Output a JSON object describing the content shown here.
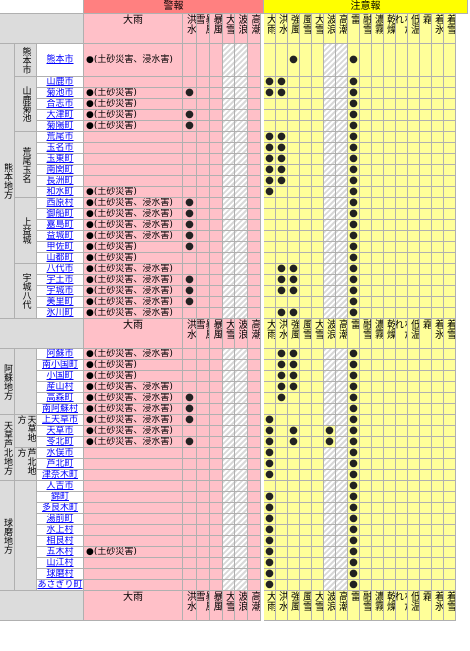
{
  "header": {
    "warning_group": "警報",
    "advisory_group": "注意報",
    "warning_cols": [
      "大雨",
      "洪水",
      "暴風雪",
      "暴風",
      "大雪",
      "波浪",
      "高潮"
    ],
    "advisory_cols": [
      "大雨",
      "洪水",
      "強風",
      "風雪",
      "大雪",
      "波浪",
      "高潮",
      "雷",
      "融雪",
      "濃霧",
      "乾燥",
      "なだれ",
      "低温",
      "霜",
      "着氷",
      "着雪"
    ]
  },
  "dot_glyph": "●",
  "regions": [
    {
      "name": "熊本地方",
      "subs": [
        {
          "name": "熊本市",
          "munis": [
            {
              "name": "熊本市",
              "note": "●(土砂災害、浸水害)",
              "w": [],
              "a": [
                2,
                7
              ]
            }
          ]
        },
        {
          "name": "山鹿菊池",
          "munis": [
            {
              "name": "山鹿市",
              "note": "",
              "w": [],
              "a": [
                0,
                1,
                7
              ]
            },
            {
              "name": "菊池市",
              "note": "●(土砂災害)",
              "w": [
                1
              ],
              "a": [
                0,
                1,
                7
              ]
            },
            {
              "name": "合志市",
              "note": "●(土砂災害)",
              "w": [],
              "a": [
                7
              ]
            },
            {
              "name": "大津町",
              "note": "●(土砂災害)",
              "w": [
                1
              ],
              "a": [
                7
              ]
            },
            {
              "name": "菊陽町",
              "note": "●(土砂災害)",
              "w": [
                1
              ],
              "a": [
                7
              ]
            }
          ]
        },
        {
          "name": "荒尾玉名",
          "munis": [
            {
              "name": "荒尾市",
              "note": "",
              "w": [],
              "a": [
                0,
                1,
                7
              ]
            },
            {
              "name": "玉名市",
              "note": "",
              "w": [],
              "a": [
                0,
                1,
                7
              ]
            },
            {
              "name": "玉東町",
              "note": "",
              "w": [],
              "a": [
                0,
                1,
                7
              ]
            },
            {
              "name": "南関町",
              "note": "",
              "w": [],
              "a": [
                0,
                1,
                7
              ]
            },
            {
              "name": "長洲町",
              "note": "",
              "w": [],
              "a": [
                0,
                1,
                7
              ]
            },
            {
              "name": "和水町",
              "note": "●(土砂災害)",
              "w": [],
              "a": [
                0,
                7
              ]
            }
          ]
        },
        {
          "name": "上益城",
          "munis": [
            {
              "name": "西原村",
              "note": "●(土砂災害、浸水害)",
              "w": [
                1
              ],
              "a": [
                7
              ]
            },
            {
              "name": "御船町",
              "note": "●(土砂災害、浸水害)",
              "w": [
                1
              ],
              "a": [
                7
              ]
            },
            {
              "name": "嘉島町",
              "note": "●(土砂災害、浸水害)",
              "w": [
                1
              ],
              "a": [
                7
              ]
            },
            {
              "name": "益城町",
              "note": "●(土砂災害、浸水害)",
              "w": [
                1
              ],
              "a": [
                7
              ]
            },
            {
              "name": "甲佐町",
              "note": "●(土砂災害)",
              "w": [
                1
              ],
              "a": [
                7
              ]
            },
            {
              "name": "山都町",
              "note": "●(土砂災害)",
              "w": [],
              "a": [
                7
              ]
            }
          ]
        },
        {
          "name": "宇城八代",
          "munis": [
            {
              "name": "八代市",
              "note": "●(土砂災害、浸水害)",
              "w": [],
              "a": [
                1,
                2,
                7
              ]
            },
            {
              "name": "宇土市",
              "note": "●(土砂災害、浸水害)",
              "w": [
                1
              ],
              "a": [
                1,
                2,
                7
              ]
            },
            {
              "name": "宇城市",
              "note": "●(土砂災害、浸水害)",
              "w": [
                1
              ],
              "a": [
                1,
                2,
                7
              ]
            },
            {
              "name": "美里町",
              "note": "●(土砂災害、浸水害)",
              "w": [
                1
              ],
              "a": [
                7
              ]
            },
            {
              "name": "氷川町",
              "note": "●(土砂災害、浸水害)",
              "w": [],
              "a": [
                1,
                2,
                7
              ]
            }
          ]
        }
      ]
    },
    {
      "name": "阿蘇地方",
      "subs": [
        {
          "name": "",
          "munis": [
            {
              "name": "阿蘇市",
              "note": "●(土砂災害、浸水害)",
              "w": [],
              "a": [
                1,
                2,
                7
              ]
            },
            {
              "name": "南小国町",
              "note": "●(土砂災害)",
              "w": [],
              "a": [
                1,
                2,
                7
              ]
            },
            {
              "name": "小国町",
              "note": "●(土砂災害)",
              "w": [],
              "a": [
                1,
                2,
                7
              ]
            },
            {
              "name": "産山村",
              "note": "●(土砂災害、浸水害)",
              "w": [],
              "a": [
                1,
                2,
                7
              ]
            },
            {
              "name": "高森町",
              "note": "●(土砂災害、浸水害)",
              "w": [
                1
              ],
              "a": [
                1,
                7
              ]
            },
            {
              "name": "南阿蘇村",
              "note": "●(土砂災害、浸水害)",
              "w": [
                1
              ],
              "a": [
                7
              ]
            }
          ]
        }
      ]
    },
    {
      "name": "天草芦北地方",
      "subs": [
        {
          "name": "天草地方",
          "munis": [
            {
              "name": "上天草市",
              "note": "●(土砂災害、浸水害)",
              "w": [
                1
              ],
              "a": [
                0,
                7
              ]
            },
            {
              "name": "天草市",
              "note": "●(土砂災害、浸水害)",
              "w": [],
              "a": [
                0,
                2,
                5,
                7
              ]
            },
            {
              "name": "苓北町",
              "note": "●(土砂災害、浸水害)",
              "w": [
                1
              ],
              "a": [
                0,
                2,
                5,
                7
              ]
            }
          ]
        },
        {
          "name": "芦北地方",
          "munis": [
            {
              "name": "水俣市",
              "note": "",
              "w": [],
              "a": [
                0,
                7
              ]
            },
            {
              "name": "芦北町",
              "note": "",
              "w": [],
              "a": [
                0,
                7
              ]
            },
            {
              "name": "津奈木町",
              "note": "",
              "w": [],
              "a": [
                0,
                7
              ]
            }
          ]
        }
      ]
    },
    {
      "name": "球磨地方",
      "subs": [
        {
          "name": "",
          "munis": [
            {
              "name": "人吉市",
              "note": "",
              "w": [],
              "a": [
                7
              ]
            },
            {
              "name": "錦町",
              "note": "",
              "w": [],
              "a": [
                0,
                7
              ]
            },
            {
              "name": "多良木町",
              "note": "",
              "w": [],
              "a": [
                0,
                7
              ]
            },
            {
              "name": "湯前町",
              "note": "",
              "w": [],
              "a": [
                0,
                7
              ]
            },
            {
              "name": "水上村",
              "note": "",
              "w": [],
              "a": [
                0,
                7
              ]
            },
            {
              "name": "相良村",
              "note": "",
              "w": [],
              "a": [
                0,
                7
              ]
            },
            {
              "name": "五木村",
              "note": "●(土砂災害)",
              "w": [],
              "a": [
                0,
                7
              ]
            },
            {
              "name": "山江村",
              "note": "",
              "w": [],
              "a": [
                0,
                7
              ]
            },
            {
              "name": "球磨村",
              "note": "",
              "w": [],
              "a": [
                0,
                7
              ]
            },
            {
              "name": "あさぎり町",
              "note": "",
              "w": [],
              "a": [
                0,
                7
              ]
            }
          ]
        }
      ]
    }
  ]
}
